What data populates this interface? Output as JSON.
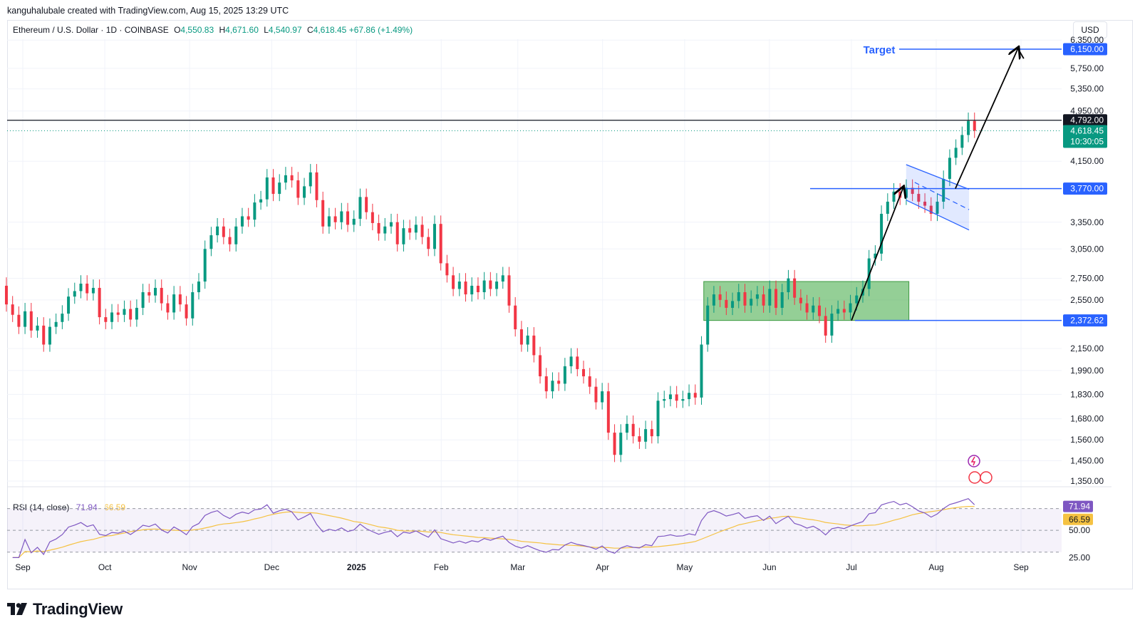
{
  "header": {
    "attribution": "kanguhalubale created with TradingView.com, Aug 15, 2025 13:29 UTC"
  },
  "legend": {
    "symbol": "Ethereum / U.S. Dollar · 1D · COINBASE",
    "open_label": "O",
    "open": "4,550.83",
    "high_label": "H",
    "high": "4,671.60",
    "low_label": "L",
    "low": "4,540.97",
    "close_label": "C",
    "close": "4,618.45",
    "change": "+67.86 (+1.49%)"
  },
  "currency_button": "USD",
  "price_axis": {
    "ticks": [
      "6,350.00",
      "5,750.00",
      "5,350.00",
      "4,950.00",
      "4,150.00",
      "3,350.00",
      "3,050.00",
      "2,750.00",
      "2,550.00",
      "2,150.00",
      "1,990.00",
      "1,830.00",
      "1,680.00",
      "1,560.00",
      "1,450.00",
      "1,350.00"
    ]
  },
  "labels": {
    "target_text": "Target",
    "target_price": "6,150.00",
    "resistance_price": "4,792.00",
    "current_price": "4,618.45",
    "countdown": "10:30:05",
    "flag_price": "3,770.00",
    "range_price": "2,372.62"
  },
  "rsi": {
    "title": "RSI (14, close)",
    "rsi_value": "71.94",
    "ma_value": "66.59",
    "ticks": [
      "50.00",
      "25.00"
    ]
  },
  "time_axis": [
    "Sep",
    "Oct",
    "Nov",
    "Dec",
    "2025",
    "Feb",
    "Mar",
    "Apr",
    "May",
    "Jun",
    "Jul",
    "Aug",
    "Sep"
  ],
  "brand": "TradingView",
  "colors": {
    "up": "#089981",
    "down": "#f23645",
    "blue": "#2962ff",
    "rsi": "#7e57c2",
    "rsi_ma": "#f5c242",
    "range_box": "#4caf50",
    "resistance": "#131722"
  },
  "chart_data": {
    "type": "candlestick",
    "ylim": [
      1350,
      6350
    ],
    "y_scale": "log",
    "x_start": "2024-08-26",
    "x_end": "2025-09-10",
    "series": [
      {
        "name": "ETH/USD",
        "values": [
          [
            2680,
            2510
          ],
          [
            2510,
            2420
          ],
          [
            2420,
            2320
          ],
          [
            2320,
            2450
          ],
          [
            2450,
            2290
          ],
          [
            2290,
            2330
          ],
          [
            2330,
            2180
          ],
          [
            2180,
            2320
          ],
          [
            2320,
            2360
          ],
          [
            2360,
            2430
          ],
          [
            2430,
            2580
          ],
          [
            2580,
            2630
          ],
          [
            2630,
            2700
          ],
          [
            2700,
            2610
          ],
          [
            2610,
            2660
          ],
          [
            2660,
            2400
          ],
          [
            2400,
            2360
          ],
          [
            2360,
            2440
          ],
          [
            2440,
            2420
          ],
          [
            2420,
            2470
          ],
          [
            2470,
            2380
          ],
          [
            2380,
            2480
          ],
          [
            2480,
            2620
          ],
          [
            2620,
            2590
          ],
          [
            2590,
            2660
          ],
          [
            2660,
            2520
          ],
          [
            2520,
            2440
          ],
          [
            2440,
            2600
          ],
          [
            2600,
            2510
          ],
          [
            2510,
            2390
          ],
          [
            2390,
            2620
          ],
          [
            2620,
            2720
          ],
          [
            2720,
            3050
          ],
          [
            3050,
            3200
          ],
          [
            3200,
            3300
          ],
          [
            3300,
            3180
          ],
          [
            3180,
            3100
          ],
          [
            3100,
            3300
          ],
          [
            3300,
            3420
          ],
          [
            3420,
            3380
          ],
          [
            3380,
            3590
          ],
          [
            3590,
            3630
          ],
          [
            3630,
            3920
          ],
          [
            3920,
            3700
          ],
          [
            3700,
            3850
          ],
          [
            3850,
            3950
          ],
          [
            3950,
            3880
          ],
          [
            3880,
            3650
          ],
          [
            3650,
            3800
          ],
          [
            3800,
            3990
          ],
          [
            3990,
            3620
          ],
          [
            3620,
            3300
          ],
          [
            3300,
            3420
          ],
          [
            3420,
            3350
          ],
          [
            3350,
            3480
          ],
          [
            3480,
            3320
          ],
          [
            3320,
            3390
          ],
          [
            3390,
            3660
          ],
          [
            3660,
            3470
          ],
          [
            3470,
            3340
          ],
          [
            3340,
            3220
          ],
          [
            3220,
            3300
          ],
          [
            3300,
            3350
          ],
          [
            3350,
            3100
          ],
          [
            3100,
            3280
          ],
          [
            3280,
            3230
          ],
          [
            3230,
            3320
          ],
          [
            3320,
            3180
          ],
          [
            3180,
            3050
          ],
          [
            3050,
            3330
          ],
          [
            3330,
            2900
          ],
          [
            2900,
            2780
          ],
          [
            2780,
            2650
          ],
          [
            2650,
            2720
          ],
          [
            2720,
            2600
          ],
          [
            2600,
            2680
          ],
          [
            2680,
            2620
          ],
          [
            2620,
            2730
          ],
          [
            2730,
            2650
          ],
          [
            2650,
            2720
          ],
          [
            2720,
            2780
          ],
          [
            2780,
            2500
          ],
          [
            2500,
            2300
          ],
          [
            2300,
            2180
          ],
          [
            2180,
            2250
          ],
          [
            2250,
            2100
          ],
          [
            2100,
            1950
          ],
          [
            1950,
            1850
          ],
          [
            1850,
            1920
          ],
          [
            1920,
            1900
          ],
          [
            1900,
            2020
          ],
          [
            2020,
            2090
          ],
          [
            2090,
            2000
          ],
          [
            2000,
            1950
          ],
          [
            1950,
            1880
          ],
          [
            1880,
            1780
          ],
          [
            1780,
            1850
          ],
          [
            1850,
            1600
          ],
          [
            1600,
            1480
          ],
          [
            1480,
            1600
          ],
          [
            1600,
            1650
          ],
          [
            1650,
            1580
          ],
          [
            1580,
            1550
          ],
          [
            1550,
            1620
          ],
          [
            1620,
            1580
          ],
          [
            1580,
            1790
          ],
          [
            1790,
            1800
          ],
          [
            1800,
            1830
          ],
          [
            1830,
            1790
          ],
          [
            1790,
            1800
          ],
          [
            1800,
            1840
          ],
          [
            1840,
            1810
          ],
          [
            1810,
            2180
          ],
          [
            2180,
            2500
          ],
          [
            2500,
            2600
          ],
          [
            2600,
            2550
          ],
          [
            2550,
            2480
          ],
          [
            2480,
            2540
          ],
          [
            2540,
            2620
          ],
          [
            2620,
            2500
          ],
          [
            2500,
            2560
          ],
          [
            2560,
            2600
          ],
          [
            2600,
            2500
          ],
          [
            2500,
            2650
          ],
          [
            2650,
            2480
          ],
          [
            2480,
            2620
          ],
          [
            2620,
            2750
          ],
          [
            2750,
            2570
          ],
          [
            2570,
            2520
          ],
          [
            2520,
            2440
          ],
          [
            2440,
            2500
          ],
          [
            2500,
            2410
          ],
          [
            2410,
            2250
          ],
          [
            2250,
            2430
          ],
          [
            2430,
            2470
          ],
          [
            2470,
            2440
          ],
          [
            2440,
            2520
          ],
          [
            2520,
            2590
          ],
          [
            2590,
            2650
          ],
          [
            2650,
            2950
          ],
          [
            2950,
            3000
          ],
          [
            3000,
            3450
          ],
          [
            3450,
            3600
          ],
          [
            3600,
            3730
          ],
          [
            3730,
            3650
          ],
          [
            3650,
            3780
          ],
          [
            3780,
            3700
          ],
          [
            3700,
            3600
          ],
          [
            3600,
            3550
          ],
          [
            3550,
            3450
          ],
          [
            3450,
            3600
          ],
          [
            3600,
            3900
          ],
          [
            3900,
            4200
          ],
          [
            4200,
            4350
          ],
          [
            4350,
            4550
          ],
          [
            4550,
            4780
          ],
          [
            4780,
            4618
          ]
        ]
      }
    ],
    "annotations": {
      "target": 6150,
      "resistance": 4792,
      "flag_level": 3770,
      "range_level": 2372.62,
      "range_box": {
        "from": "2025-05-08",
        "to": "2025-07-22",
        "low": 2372.62,
        "high": 2720
      }
    },
    "rsi": {
      "ylim": [
        20,
        90
      ],
      "upper": 70,
      "lower": 30,
      "mid": 50,
      "last": 71.94,
      "ma_last": 66.59
    }
  }
}
